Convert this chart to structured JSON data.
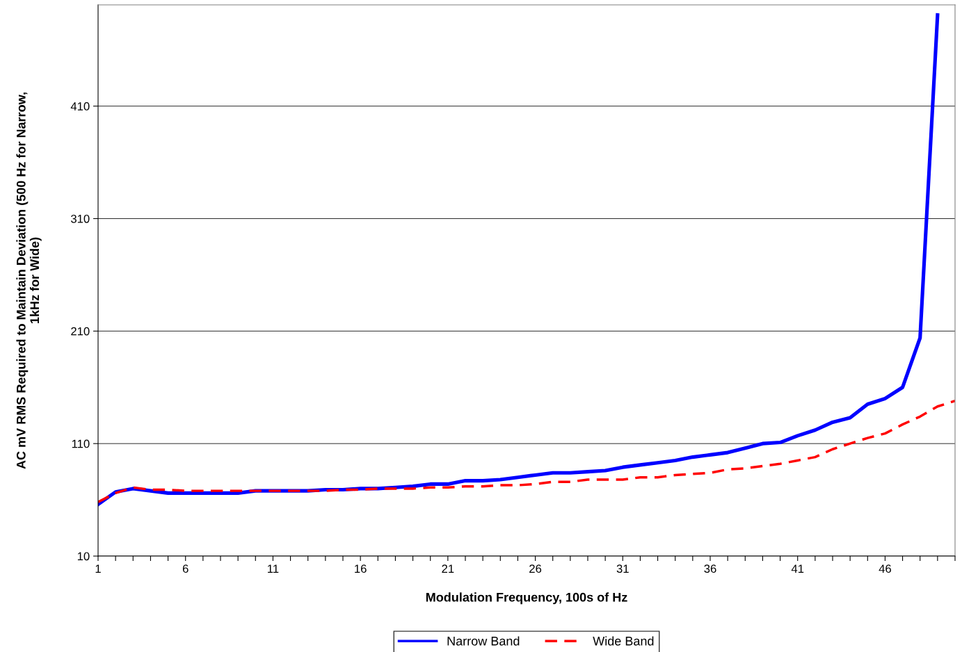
{
  "chart_data": {
    "type": "line",
    "xlabel": "Modulation Frequency, 100s of Hz",
    "ylabel": "AC mV RMS Required to Maintain Deviation (500 Hz for Narrow,\n1kHz for Wide)",
    "categories": [
      "1",
      null,
      null,
      null,
      null,
      "6",
      null,
      null,
      null,
      null,
      "11",
      null,
      null,
      null,
      null,
      "16",
      null,
      null,
      null,
      null,
      "21",
      null,
      null,
      null,
      null,
      "26",
      null,
      null,
      null,
      null,
      "31",
      null,
      null,
      null,
      null,
      "36",
      null,
      null,
      null,
      null,
      "41",
      null,
      null,
      null,
      null,
      "46",
      null,
      null,
      null,
      null
    ],
    "series": [
      {
        "name": "Narrow Band",
        "color": "#0000ff",
        "line_style": "solid",
        "values": [
          56,
          67,
          70,
          68,
          66,
          66,
          66,
          66,
          66,
          68,
          68,
          68,
          68,
          69,
          69,
          70,
          70,
          71,
          72,
          74,
          74,
          77,
          77,
          78,
          80,
          82,
          84,
          84,
          85,
          86,
          89,
          91,
          93,
          95,
          98,
          100,
          102,
          106,
          110,
          111,
          117,
          122,
          129,
          133,
          145,
          150,
          160,
          204,
          491,
          null
        ]
      },
      {
        "name": "Wide Band",
        "color": "#ff0000",
        "line_style": "dashed",
        "values": [
          58,
          66,
          71,
          69,
          69,
          68,
          68,
          68,
          68,
          68,
          68,
          68,
          68,
          68,
          69,
          69,
          70,
          70,
          70,
          71,
          71,
          72,
          72,
          73,
          73,
          74,
          76,
          76,
          78,
          78,
          78,
          80,
          80,
          82,
          83,
          84,
          87,
          88,
          90,
          92,
          95,
          98,
          105,
          110,
          115,
          119,
          127,
          134,
          143,
          148
        ]
      }
    ],
    "ylim": [
      10,
      500
    ],
    "yticks": [
      10,
      110,
      210,
      310,
      410
    ],
    "grid": "y",
    "legend": "bottom",
    "marker": "none"
  }
}
